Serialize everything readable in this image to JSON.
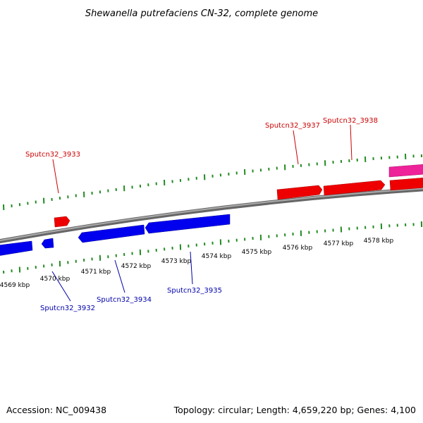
{
  "title": "Shewanella putrefaciens CN-32, complete genome",
  "footer": {
    "accession": "Accession: NC_009438",
    "summary": "Topology: circular; Length: 4,659,220 bp; Genes: 4,100"
  },
  "colors": {
    "forward_gene": "#ee0000",
    "reverse_gene": "#0000ee",
    "rna_gene": "#ee2299",
    "backbone": "#888888",
    "ticks": "#228b22",
    "forward_label": "#cc0000",
    "reverse_label": "#0000aa"
  },
  "scale": {
    "unit": "kbp",
    "labels": [
      "4569 kbp",
      "4570 kbp",
      "4571 kbp",
      "4572 kbp",
      "4573 kbp",
      "4574 kbp",
      "4575 kbp",
      "4576 kbp",
      "4577 kbp",
      "4578 kbp"
    ]
  },
  "genes": {
    "forward": [
      "Sputcn32_3933",
      "Sputcn32_3937",
      "Sputcn32_3938"
    ],
    "reverse": [
      "Sputcn32_3932",
      "Sputcn32_3934",
      "Sputcn32_3935"
    ]
  }
}
